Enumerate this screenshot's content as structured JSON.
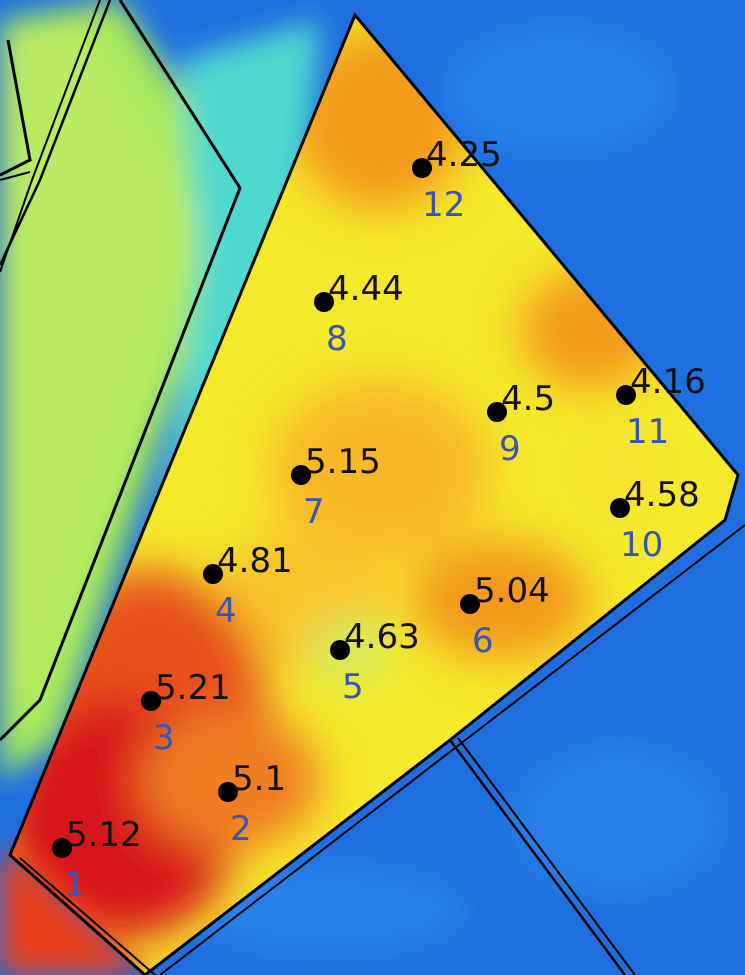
{
  "colors": {
    "field_red": "#d7191c",
    "field_orange": "#f39a1f",
    "field_yellow": "#f5e92c",
    "field_green": "#a6e85c",
    "field_cyan": "#3ad0e6",
    "field_blue": "#1f6fe0",
    "boundary": "#000000",
    "point_marker": "#000000",
    "value_text": "#111111",
    "index_text": "#3a55b0"
  },
  "sample_points": [
    {
      "id": "1",
      "value": "5.12"
    },
    {
      "id": "2",
      "value": "5.1"
    },
    {
      "id": "3",
      "value": "5.21"
    },
    {
      "id": "4",
      "value": "4.81"
    },
    {
      "id": "5",
      "value": "4.63"
    },
    {
      "id": "6",
      "value": "5.04"
    },
    {
      "id": "7",
      "value": "5.15"
    },
    {
      "id": "8",
      "value": "4.44"
    },
    {
      "id": "9",
      "value": "4.5"
    },
    {
      "id": "10",
      "value": "4.58"
    },
    {
      "id": "11",
      "value": "4.16"
    },
    {
      "id": "12",
      "value": "4.25"
    }
  ]
}
